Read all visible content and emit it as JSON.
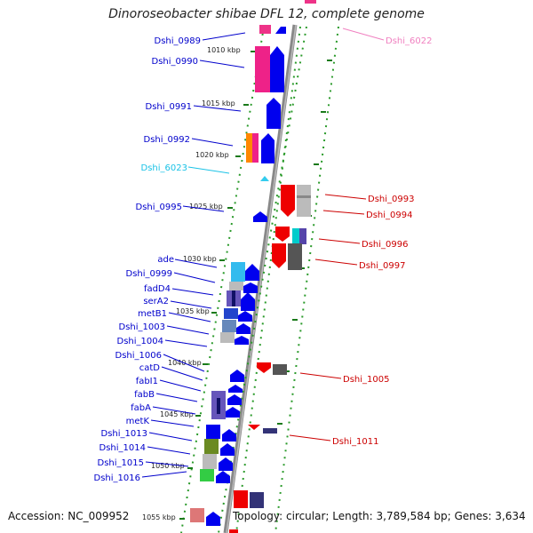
{
  "title": "Dinoroseobacter shibae DFL 12, complete genome",
  "accession": "Accession: NC_009952",
  "topology": "Topology: circular; Length: 3,789,584 bp; Genes: 3,634",
  "scale_labels": [
    "1010 kbp",
    "1015 kbp",
    "1020 kbp",
    "1025 kbp",
    "1030 kbp",
    "1035 kbp",
    "1040 kbp",
    "1045 kbp",
    "1050 kbp",
    "1055 kbp"
  ],
  "left_labels": [
    {
      "text": "Dshi_0989",
      "color": "#0000cc"
    },
    {
      "text": "Dshi_0990",
      "color": "#0000cc"
    },
    {
      "text": "Dshi_0991",
      "color": "#0000cc"
    },
    {
      "text": "Dshi_0992",
      "color": "#0000cc"
    },
    {
      "text": "Dshi_6023",
      "color": "#19c2e6"
    },
    {
      "text": "Dshi_0995",
      "color": "#0000cc"
    },
    {
      "text": "ade",
      "color": "#0000cc"
    },
    {
      "text": "Dshi_0999",
      "color": "#0000cc"
    },
    {
      "text": "fadD4",
      "color": "#0000cc"
    },
    {
      "text": "serA2",
      "color": "#0000cc"
    },
    {
      "text": "metB1",
      "color": "#0000cc"
    },
    {
      "text": "Dshi_1003",
      "color": "#0000cc"
    },
    {
      "text": "Dshi_1004",
      "color": "#0000cc"
    },
    {
      "text": "Dshi_1006",
      "color": "#0000cc"
    },
    {
      "text": "catD",
      "color": "#0000cc"
    },
    {
      "text": "fabI1",
      "color": "#0000cc"
    },
    {
      "text": "fabB",
      "color": "#0000cc"
    },
    {
      "text": "fabA",
      "color": "#0000cc"
    },
    {
      "text": "metK",
      "color": "#0000cc"
    },
    {
      "text": "Dshi_1013",
      "color": "#0000cc"
    },
    {
      "text": "Dshi_1014",
      "color": "#0000cc"
    },
    {
      "text": "Dshi_1015",
      "color": "#0000cc"
    },
    {
      "text": "Dshi_1016",
      "color": "#0000cc"
    }
  ],
  "right_labels": [
    {
      "text": "Dshi_6022",
      "color": "#f080c0"
    },
    {
      "text": "Dshi_0993",
      "color": "#cc0000"
    },
    {
      "text": "Dshi_0994",
      "color": "#cc0000"
    },
    {
      "text": "Dshi_0996",
      "color": "#cc0000"
    },
    {
      "text": "Dshi_0997",
      "color": "#cc0000"
    },
    {
      "text": "Dshi_1005",
      "color": "#cc0000"
    },
    {
      "text": "Dshi_1011",
      "color": "#cc0000"
    }
  ]
}
